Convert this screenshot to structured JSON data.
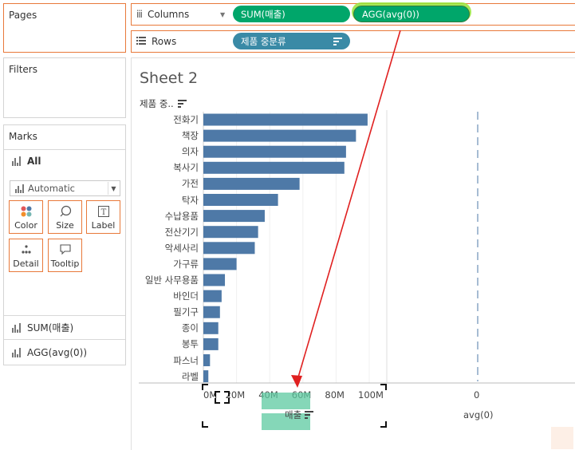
{
  "left_panel": {
    "pages_title": "Pages",
    "filters_title": "Filters",
    "marks_title": "Marks",
    "all_label": "All",
    "mark_type": "Automatic",
    "buttons": {
      "color": "Color",
      "size": "Size",
      "label": "Label",
      "detail": "Detail",
      "tooltip": "Tooltip"
    },
    "measures": [
      "SUM(매출)",
      "AGG(avg(0))"
    ]
  },
  "shelves": {
    "columns_label": "Columns",
    "rows_label": "Rows",
    "columns_pills": [
      "SUM(매출)",
      "AGG(avg(0))"
    ],
    "rows_pill": "제품 중분류"
  },
  "sheet": {
    "title": "Sheet 2",
    "row_header": "제품 중..",
    "x_axis_label": "매출",
    "avg_axis_label": "avg(0)",
    "avg_tick": "0"
  },
  "chart_data": {
    "type": "bar",
    "categories": [
      "전화기",
      "책장",
      "의자",
      "복사기",
      "가전",
      "탁자",
      "수납용품",
      "전산기기",
      "악세사리",
      "가구류",
      "일반 사무용품",
      "바인더",
      "필기구",
      "종이",
      "봉투",
      "파스너",
      "라벨"
    ],
    "values": [
      99,
      92,
      86,
      85,
      58,
      45,
      37,
      33,
      31,
      20,
      13,
      11,
      10,
      9,
      9,
      4,
      3
    ],
    "x_ticks": [
      "0M",
      "20M",
      "40M",
      "60M",
      "80M",
      "100M"
    ],
    "xlim": [
      0,
      110
    ],
    "unit": "M",
    "xlabel": "매출",
    "bar_color": "#4e79a7"
  },
  "colors": {
    "accent": "#e8793a",
    "pill_green": "#00a66a",
    "pill_teal": "#3a8aa6",
    "highlight": "#95e53a",
    "arrow": "#e02020"
  }
}
